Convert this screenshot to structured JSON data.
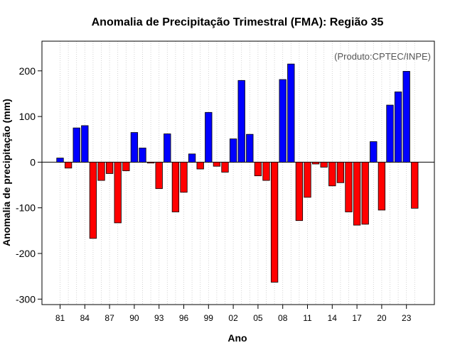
{
  "chart_data": {
    "type": "bar",
    "title": "Anomalia de Precipitação Trimestral (FMA): Região 35",
    "annotation": "(Produto:CPTEC/INPE)",
    "xlabel": "Ano",
    "ylabel": "Anomalia de precipitação (mm)",
    "ylim": [
      -312,
      265
    ],
    "yticks": [
      -300,
      -200,
      -100,
      0,
      100,
      200
    ],
    "grid": "vertical dotted",
    "categories": [
      "1981",
      "1982",
      "1983",
      "1984",
      "1985",
      "1986",
      "1987",
      "1988",
      "1989",
      "1990",
      "1991",
      "1992",
      "1993",
      "1994",
      "1995",
      "1996",
      "1997",
      "1998",
      "1999",
      "2000",
      "2001",
      "2002",
      "2003",
      "2004",
      "2005",
      "2006",
      "2007",
      "2008",
      "2009",
      "2010",
      "2011",
      "2012",
      "2013",
      "2014",
      "2015",
      "2016",
      "2017",
      "2018",
      "2019",
      "2020",
      "2021",
      "2022",
      "2023",
      "2024"
    ],
    "xtick_labels": [
      "81",
      "84",
      "87",
      "90",
      "93",
      "96",
      "99",
      "02",
      "05",
      "08",
      "11",
      "14",
      "17",
      "20",
      "23"
    ],
    "values": [
      9,
      -13,
      75,
      80,
      -167,
      -40,
      -25,
      -133,
      -19,
      65,
      31,
      -2,
      -58,
      62,
      -109,
      -66,
      18,
      -15,
      109,
      -9,
      -22,
      51,
      179,
      61,
      -30,
      -40,
      -263,
      181,
      215,
      -128,
      -77,
      -4,
      -11,
      -52,
      -45,
      -109,
      -138,
      -136,
      45,
      -105,
      125,
      154,
      199,
      -101
    ],
    "colors": {
      "positive": "#0000ff",
      "negative": "#ff0000",
      "zero_line": "#000000",
      "grid": "#c8c8c8"
    }
  }
}
